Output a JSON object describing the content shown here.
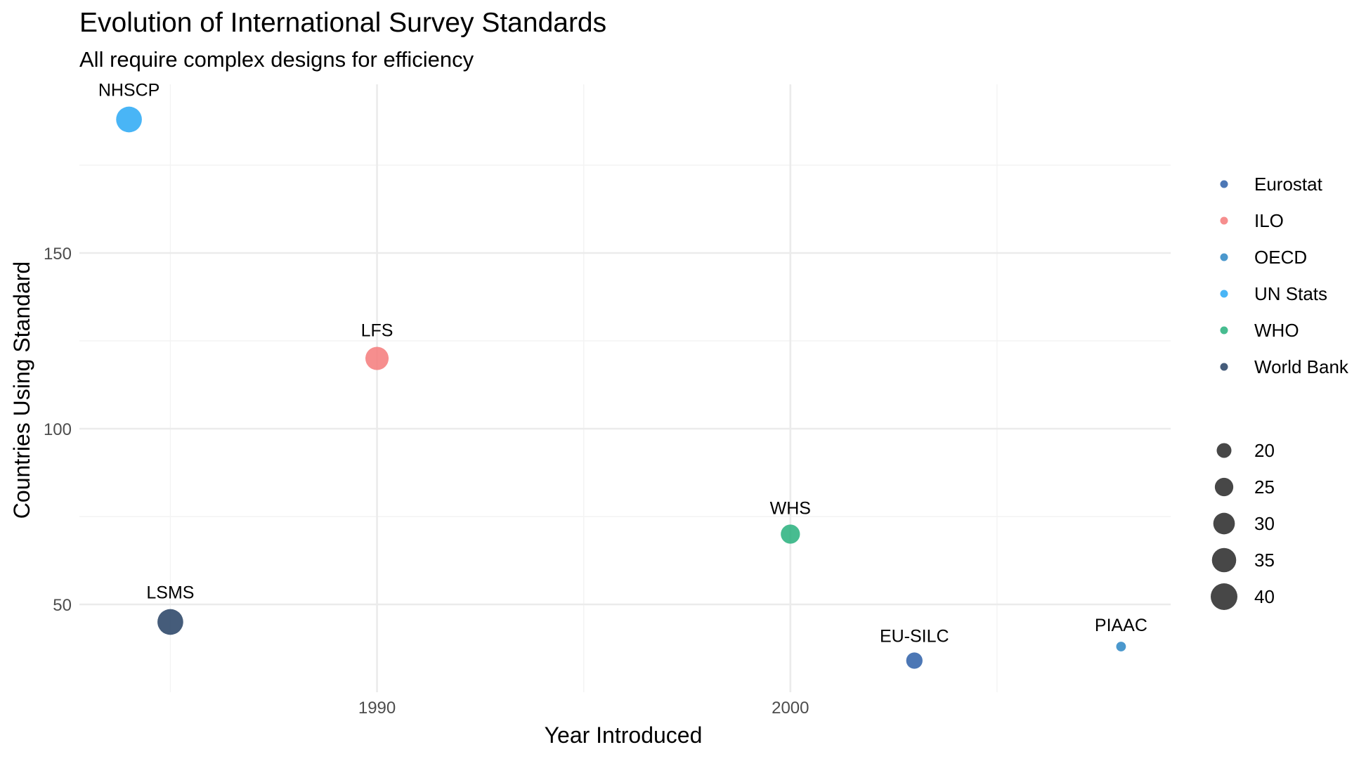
{
  "chart_data": {
    "type": "scatter",
    "title": "Evolution of International Survey Standards",
    "subtitle": "All require complex designs for efficiency",
    "xlabel": "Year Introduced",
    "ylabel": "Countries Using Standard",
    "xlim": [
      1982.8,
      2009.2
    ],
    "ylim": [
      25,
      198
    ],
    "x_ticks": [
      1990,
      2000
    ],
    "y_ticks": [
      50,
      100,
      150
    ],
    "x_minor_ticks": [
      1985,
      1995,
      2005
    ],
    "y_minor_ticks": [
      75,
      125,
      175
    ],
    "grid": true,
    "legend_placement": "right",
    "points": [
      {
        "label": "NHSCP",
        "year": 1984,
        "countries": 188,
        "organization": "UN Stats",
        "size": 38
      },
      {
        "label": "LSMS",
        "year": 1985,
        "countries": 45,
        "organization": "World Bank",
        "size": 38
      },
      {
        "label": "LFS",
        "year": 1990,
        "countries": 120,
        "organization": "ILO",
        "size": 33
      },
      {
        "label": "WHS",
        "year": 2000,
        "countries": 70,
        "organization": "WHO",
        "size": 26
      },
      {
        "label": "EU-SILC",
        "year": 2003,
        "countries": 34,
        "organization": "Eurostat",
        "size": 22
      },
      {
        "label": "PIAAC",
        "year": 2008,
        "countries": 38,
        "organization": "OECD",
        "size": 15
      }
    ],
    "color_legend": [
      {
        "name": "Eurostat",
        "color": "#2d5fa8"
      },
      {
        "name": "ILO",
        "color": "#f57a7a"
      },
      {
        "name": "OECD",
        "color": "#2c86c4"
      },
      {
        "name": "UN Stats",
        "color": "#29a8f5"
      },
      {
        "name": "WHO",
        "color": "#27b07d"
      },
      {
        "name": "World Bank",
        "color": "#243f63"
      }
    ],
    "size_legend": [
      20,
      25,
      30,
      35,
      40
    ]
  }
}
